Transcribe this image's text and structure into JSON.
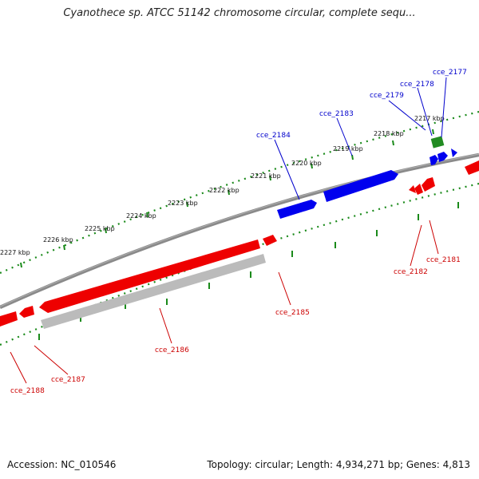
{
  "title": "Cyanothece sp. ATCC 51142 chromosome circular, complete sequ...",
  "footer": {
    "accession": "Accession: NC_010546",
    "summary": "Topology: circular; Length: 4,934,271 bp; Genes: 4,813"
  },
  "colors": {
    "forward_gene": "#0000ee",
    "reverse_gene": "#ee0000",
    "rna_gene": "#228b22",
    "pseudo_gene": "#bbbbbb",
    "backbone": "#808080",
    "tick": "#008000",
    "forward_label": "#0000cc",
    "reverse_label": "#cc0000"
  },
  "kbp_labels": [
    {
      "name": "kbp-label-2217",
      "text": "2217 kbp"
    },
    {
      "name": "kbp-label-2218",
      "text": "2218 kbp"
    },
    {
      "name": "kbp-label-2219",
      "text": "2219 kbp"
    },
    {
      "name": "kbp-label-2220",
      "text": "2220 kbp"
    },
    {
      "name": "kbp-label-2221",
      "text": "2221 kbp"
    },
    {
      "name": "kbp-label-2222",
      "text": "2222 kbp"
    },
    {
      "name": "kbp-label-2223",
      "text": "2223 kbp"
    },
    {
      "name": "kbp-label-2224",
      "text": "2224 kbp"
    },
    {
      "name": "kbp-label-2225",
      "text": "2225 kbp"
    },
    {
      "name": "kbp-label-2226",
      "text": "2226 kbp"
    },
    {
      "name": "kbp-label-2227",
      "text": "2227 kbp"
    }
  ],
  "genes": [
    {
      "name": "gene-label-cce-2177",
      "text": "cce_2177",
      "strand": "forward"
    },
    {
      "name": "gene-label-cce-2178",
      "text": "cce_2178",
      "strand": "forward"
    },
    {
      "name": "gene-label-cce-2179",
      "text": "cce_2179",
      "strand": "forward"
    },
    {
      "name": "gene-label-cce-2183",
      "text": "cce_2183",
      "strand": "forward"
    },
    {
      "name": "gene-label-cce-2184",
      "text": "cce_2184",
      "strand": "forward"
    },
    {
      "name": "gene-label-cce-2181",
      "text": "cce_2181",
      "strand": "reverse"
    },
    {
      "name": "gene-label-cce-2182",
      "text": "cce_2182",
      "strand": "reverse"
    },
    {
      "name": "gene-label-cce-2185",
      "text": "cce_2185",
      "strand": "reverse"
    },
    {
      "name": "gene-label-cce-2186",
      "text": "cce_2186",
      "strand": "reverse"
    },
    {
      "name": "gene-label-cce-2187",
      "text": "cce_2187",
      "strand": "reverse"
    },
    {
      "name": "gene-label-cce-2188",
      "text": "cce_2188",
      "strand": "reverse"
    }
  ]
}
